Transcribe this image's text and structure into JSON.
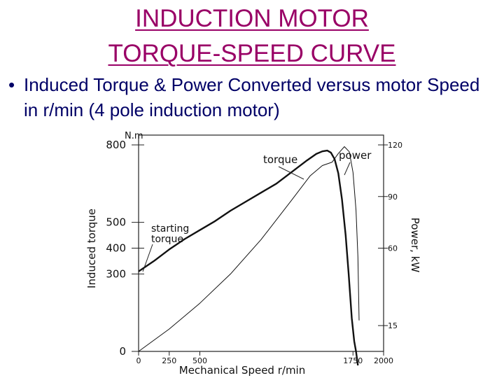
{
  "slide": {
    "title_line1": "INDUCTION MOTOR",
    "title_line2": "TORQUE-SPEED CURVE",
    "bullet": "Induced Torque & Power Converted versus motor Speed in r/min (4 pole induction motor)",
    "title_color": "#990066",
    "text_color": "#000066"
  },
  "chart_data": {
    "type": "line",
    "xlabel": "Mechanical Speed  r/min",
    "ylabel_left": "Induced torque",
    "ylabel_right": "Power, kW",
    "left_unit": "N.m",
    "x_ticks": [
      "0",
      "250",
      "500",
      "1750",
      "2000"
    ],
    "x_tick_values": [
      0,
      250,
      500,
      1750,
      2000
    ],
    "xlim": [
      0,
      2000
    ],
    "y_left_ticks": [
      "0",
      "300",
      "400",
      "500",
      "800"
    ],
    "y_left_tick_values": [
      0,
      300,
      400,
      500,
      800
    ],
    "ylim_left": [
      0,
      800
    ],
    "y_right_ticks": [
      "15",
      "60",
      "90",
      "120"
    ],
    "y_right_tick_values": [
      15,
      60,
      90,
      120
    ],
    "ylim_right": [
      0,
      120
    ],
    "series": [
      {
        "name": "torque",
        "axis": "left",
        "line": "thick",
        "points": [
          [
            0,
            310
          ],
          [
            125,
            350
          ],
          [
            250,
            395
          ],
          [
            375,
            435
          ],
          [
            500,
            470
          ],
          [
            625,
            505
          ],
          [
            750,
            545
          ],
          [
            875,
            580
          ],
          [
            1000,
            615
          ],
          [
            1125,
            650
          ],
          [
            1250,
            695
          ],
          [
            1375,
            740
          ],
          [
            1450,
            765
          ],
          [
            1500,
            775
          ],
          [
            1540,
            778
          ],
          [
            1570,
            770
          ],
          [
            1600,
            745
          ],
          [
            1630,
            690
          ],
          [
            1660,
            590
          ],
          [
            1690,
            450
          ],
          [
            1715,
            300
          ],
          [
            1740,
            130
          ],
          [
            1760,
            40
          ],
          [
            1775,
            0
          ],
          [
            1790,
            -110
          ]
        ]
      },
      {
        "name": "power",
        "axis": "right",
        "line": "thin",
        "points": [
          [
            0,
            0
          ],
          [
            250,
            13
          ],
          [
            500,
            28
          ],
          [
            750,
            45
          ],
          [
            1000,
            65
          ],
          [
            1250,
            88
          ],
          [
            1400,
            102
          ],
          [
            1500,
            108
          ],
          [
            1580,
            110
          ],
          [
            1630,
            115
          ],
          [
            1680,
            119
          ],
          [
            1720,
            116
          ],
          [
            1750,
            104
          ],
          [
            1775,
            82
          ],
          [
            1790,
            55
          ],
          [
            1800,
            18
          ]
        ]
      }
    ],
    "annotations": [
      {
        "text": "torque",
        "points_to": "torque"
      },
      {
        "text": "power",
        "points_to": "power"
      },
      {
        "text_lines": [
          "starting",
          "torque"
        ],
        "points_to": "starting torque at 0 r/min"
      }
    ],
    "grid": false,
    "legend": "none"
  }
}
